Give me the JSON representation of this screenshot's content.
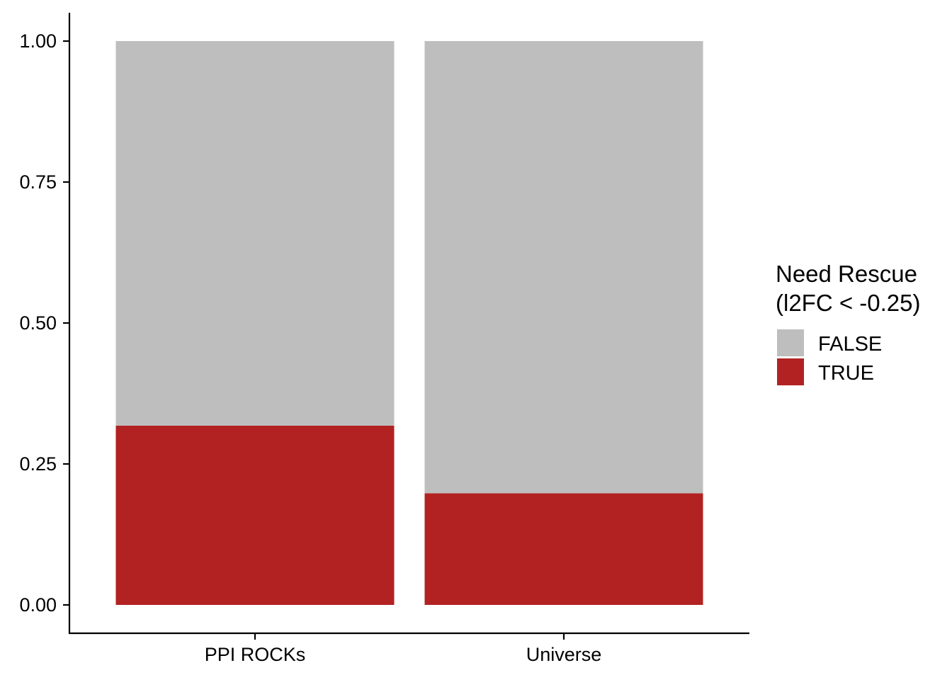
{
  "chart_data": {
    "type": "bar",
    "stacked": true,
    "categories": [
      "PPI ROCKs",
      "Universe"
    ],
    "series": [
      {
        "name": "TRUE",
        "color": "#B22222",
        "values": [
          0.318,
          0.198
        ]
      },
      {
        "name": "FALSE",
        "color": "#BEBEBE",
        "values": [
          0.682,
          0.802
        ]
      }
    ],
    "title": "",
    "xlabel": "",
    "ylabel": "",
    "ylim": [
      0,
      1
    ],
    "yticks": [
      "0.00",
      "0.25",
      "0.50",
      "0.75",
      "1.00"
    ],
    "grid": false,
    "legend": {
      "title_line1": "Need Rescue",
      "title_line2": "(l2FC < -0.25)",
      "placement": "right",
      "entries": [
        {
          "label": "FALSE",
          "color": "#BEBEBE"
        },
        {
          "label": "TRUE",
          "color": "#B22222"
        }
      ]
    }
  }
}
